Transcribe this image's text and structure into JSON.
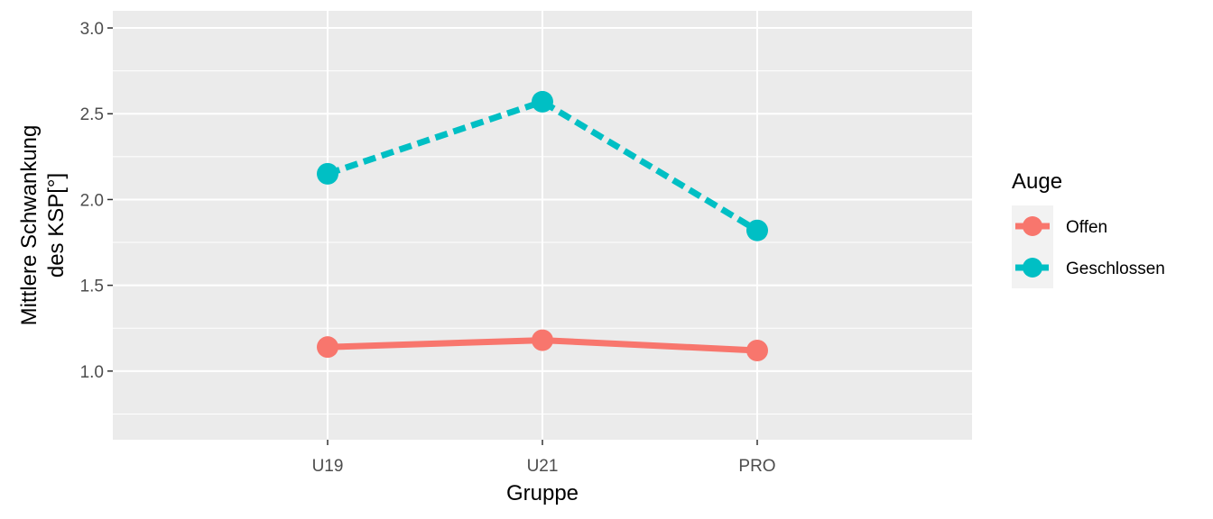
{
  "chart_data": {
    "type": "line",
    "categories": [
      "U19",
      "U21",
      "PRO"
    ],
    "xlabel": "Gruppe",
    "ylabel_lines": [
      "Mittlere Schwankung",
      "des KSP[°]"
    ],
    "ylim": [
      0.6,
      3.1
    ],
    "yticks": [
      1.0,
      1.5,
      2.0,
      2.5,
      3.0
    ],
    "ytick_labels": [
      "1.0",
      "1.5",
      "2.0",
      "2.5",
      "3.0"
    ],
    "grid": true,
    "legend": {
      "title": "Auge",
      "position": "right"
    },
    "series": [
      {
        "name": "Offen",
        "values": [
          1.14,
          1.18,
          1.12
        ],
        "color": "#F8766D",
        "dashed": false
      },
      {
        "name": "Geschlossen",
        "values": [
          2.15,
          2.57,
          1.82
        ],
        "color": "#00BFC4",
        "dashed": true
      }
    ]
  }
}
